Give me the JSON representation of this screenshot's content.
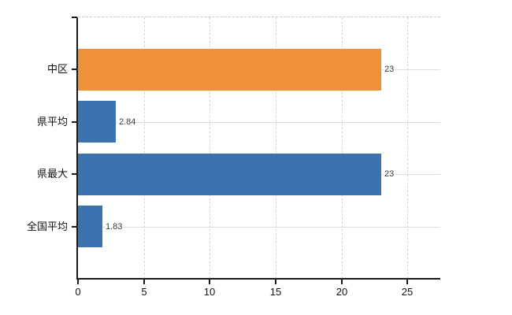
{
  "chart_data": {
    "type": "bar",
    "orientation": "horizontal",
    "title": "",
    "xlabel": "",
    "ylabel": "",
    "categories": [
      "中区",
      "県平均",
      "県最大",
      "全国平均"
    ],
    "series": [
      {
        "name": "",
        "values": [
          23,
          2.84,
          23,
          1.83
        ],
        "value_labels": [
          "23",
          "2.84",
          "23",
          "1.83"
        ],
        "bar_colors": [
          "#EF913B",
          "#3B73AE",
          "#3B73AE",
          "#3B73AE"
        ]
      }
    ],
    "x_ticks": [
      0,
      5,
      10,
      15,
      20,
      25
    ],
    "x_tick_labels": [
      "0",
      "5",
      "10",
      "15",
      "20",
      "25"
    ],
    "xlim": [
      0,
      27.5
    ],
    "grid": true,
    "legend": "none",
    "accent_colors": {
      "orange": "#EF913B",
      "blue": "#3B73AE"
    }
  }
}
